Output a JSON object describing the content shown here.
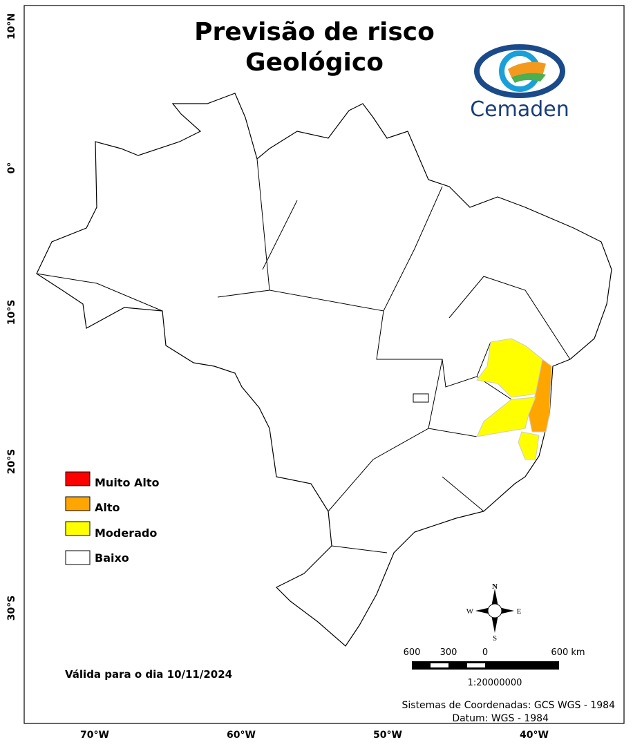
{
  "header": {
    "title": [
      "Previsão de risco",
      "Geológico"
    ],
    "logo": "Cemaden"
  },
  "legend": {
    "items": [
      "Muito Alto",
      "Alto",
      "Moderado",
      "Baixo"
    ]
  },
  "validity": "Válida para o dia 10/11/2024",
  "axes": {
    "latitude": [
      "10°N",
      "0°",
      "10°S",
      "20°S",
      "30°S"
    ],
    "longitude": [
      "70°W",
      "60°W",
      "50°W",
      "40°W"
    ]
  },
  "compass": {
    "north": "N",
    "south": "S",
    "east": "E",
    "west": "W"
  },
  "scale_bar": {
    "labels": [
      "600",
      "300",
      "0",
      "600 km"
    ],
    "ratio": "1:20000000"
  },
  "footer": {
    "coordinates": "Sistemas de Coordenadas: GCS WGS - 1984",
    "datum": "Datum: WGS - 1984"
  }
}
